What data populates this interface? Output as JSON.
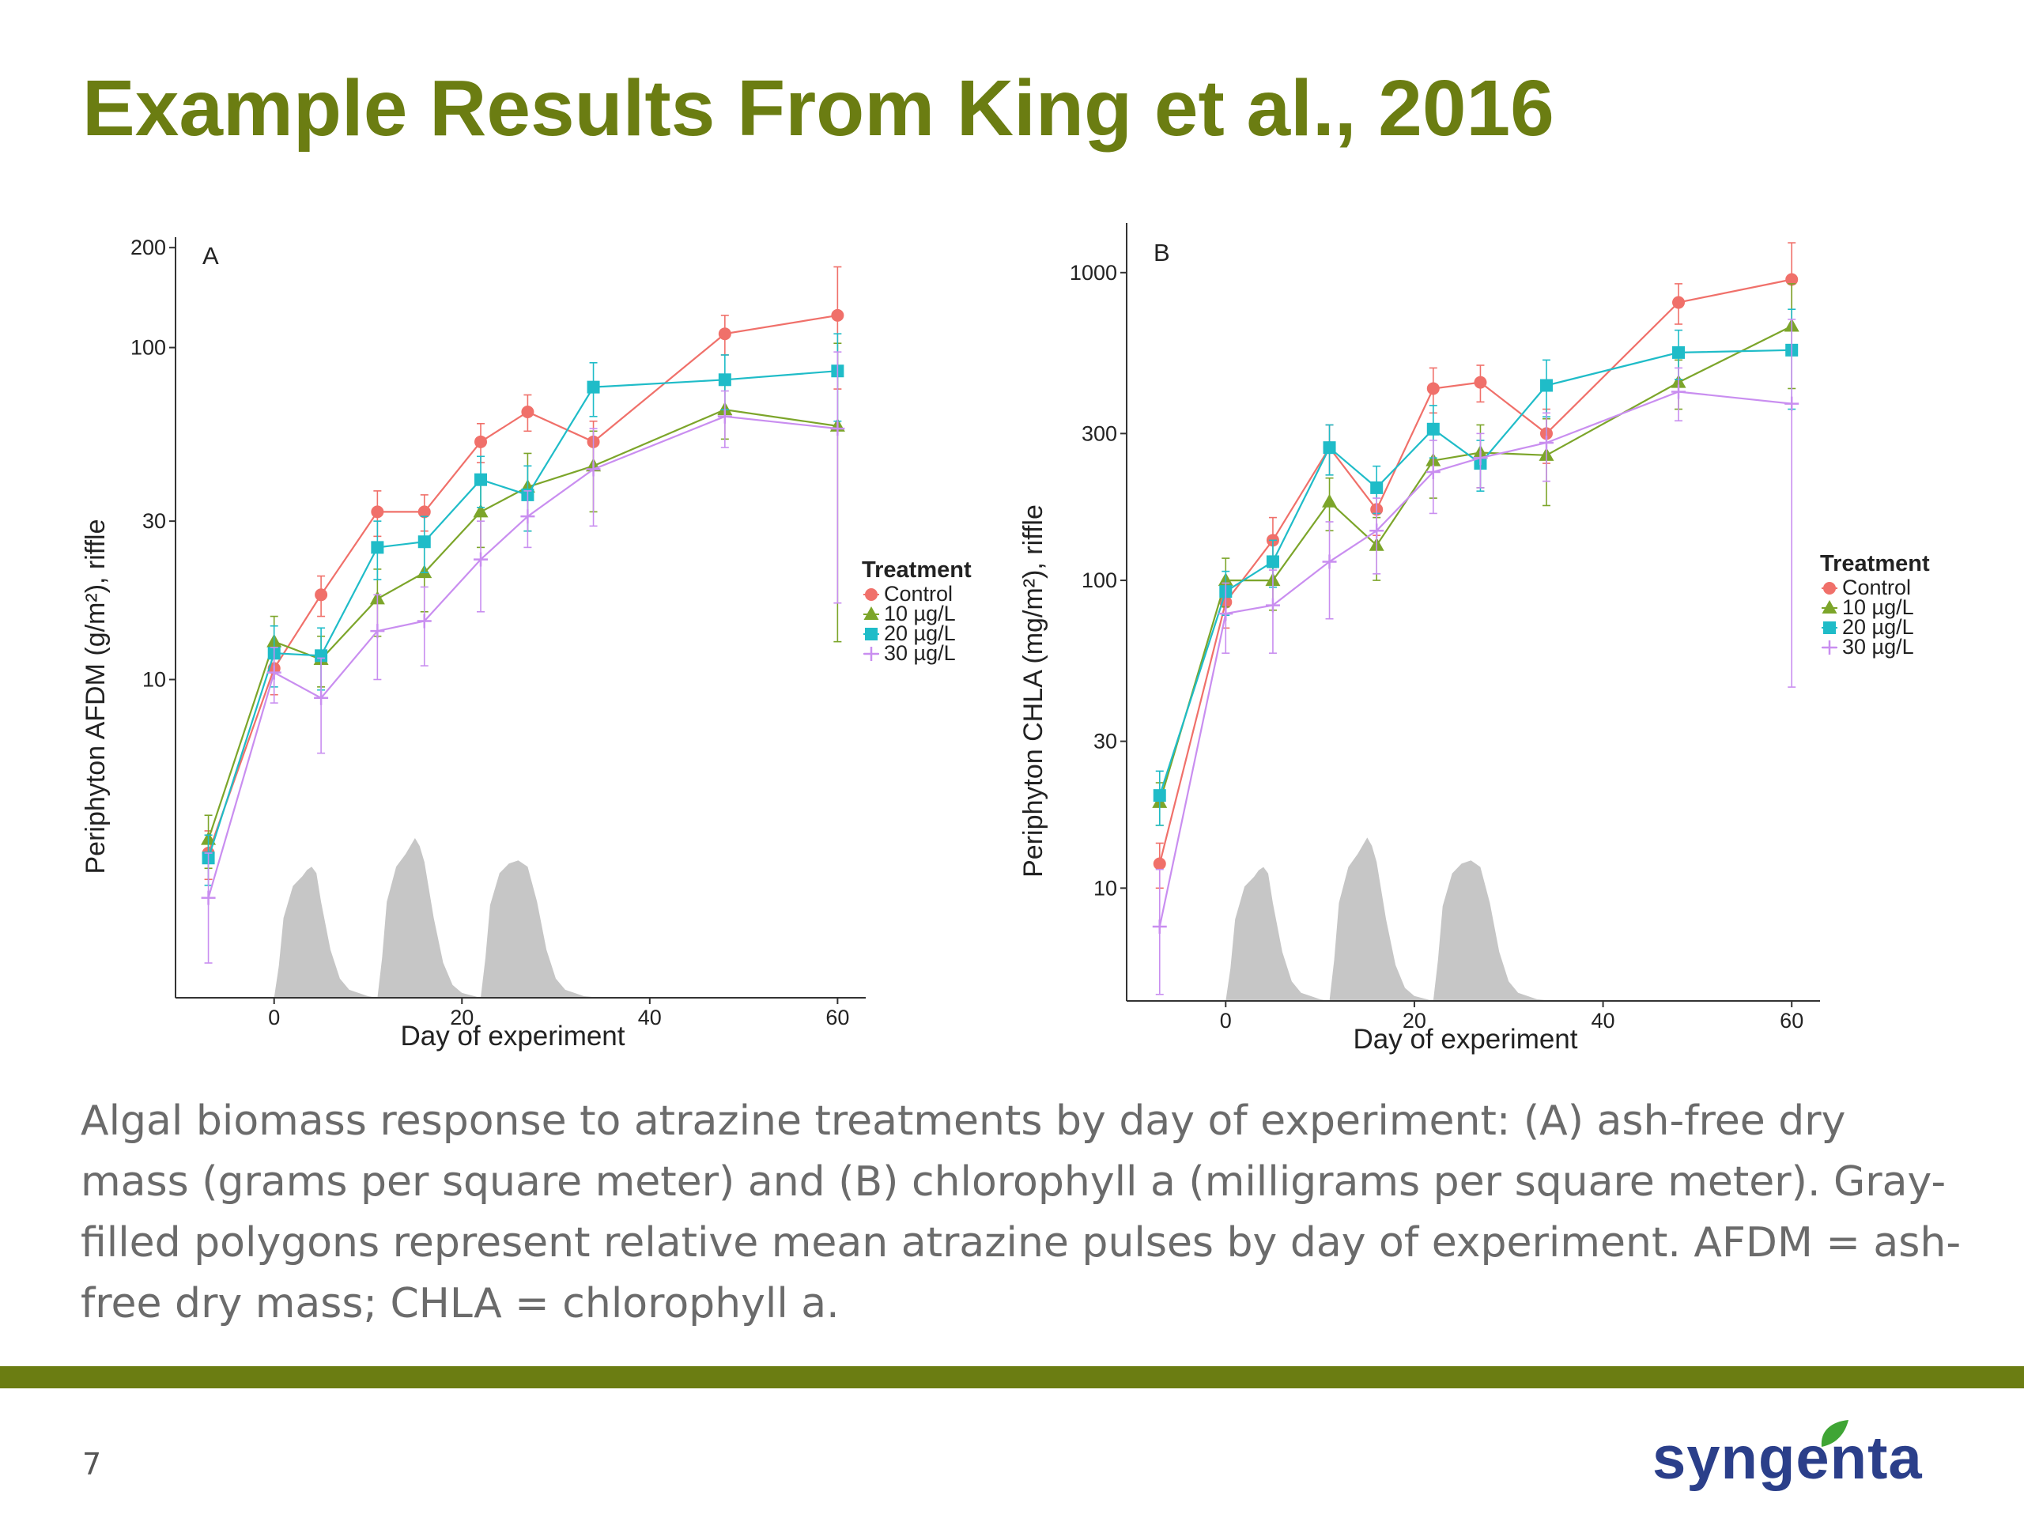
{
  "slide": {
    "title": "Example Results From King et al., 2016",
    "caption": "Algal biomass response to atrazine treatments by day of experiment: (A) ash-free dry mass (grams per square meter) and (B) chlorophyll a (milligrams per square meter). Gray-filled polygons represent relative mean atrazine pulses by day of experiment. AFDM = ash-free dry mass; CHLA = chlorophyll a.",
    "page_number": "7",
    "logo_text": "syngenta"
  },
  "colors": {
    "title": "#6b7d12",
    "footer_bar": "#6b7d12",
    "logo_text": "#2b3f8a",
    "logo_leaf": "#3fa535",
    "pulse_fill": "#c6c6c6",
    "series": [
      "#f0706a",
      "#7ca52a",
      "#1fbcc8",
      "#c98ef0"
    ]
  },
  "chart_data": [
    {
      "type": "line",
      "panel": "A",
      "xlabel": "Day of experiment",
      "ylabel": "Periphyton AFDM (g/m²), riffle",
      "yscale": "log",
      "xlim": [
        -10.5,
        63
      ],
      "ylim": [
        1.1,
        215
      ],
      "xticks": [
        0,
        20,
        40,
        60
      ],
      "yticks": [
        10,
        30,
        100,
        200
      ],
      "grid": false,
      "legend": {
        "title": "Treatment",
        "position": "right",
        "entries": [
          "Control",
          "10 µg/L",
          "20 µg/L",
          "30 µg/L"
        ]
      },
      "x": [
        -7,
        0,
        5,
        11,
        16,
        22,
        27,
        34,
        48,
        60
      ],
      "series": [
        {
          "name": "Control",
          "marker": "circle",
          "values": [
            3.0,
            10.8,
            18.0,
            32.0,
            32.0,
            52.0,
            64.0,
            52.0,
            110.0,
            125.0
          ],
          "error": [
            0.5,
            1.8,
            2.5,
            5.0,
            4.0,
            7.0,
            8.0,
            8.0,
            15.0,
            50.0
          ]
        },
        {
          "name": "10 µg/L",
          "marker": "triangle",
          "values": [
            3.3,
            13.0,
            11.5,
            17.5,
            21.0,
            32.0,
            38.0,
            44.0,
            65.0,
            58.0
          ],
          "error": [
            0.6,
            2.5,
            2.0,
            4.0,
            5.0,
            7.0,
            10.0,
            12.0,
            12.0,
            45.0
          ]
        },
        {
          "name": "20 µg/L",
          "marker": "square",
          "values": [
            2.9,
            12.0,
            11.8,
            25.0,
            26.0,
            40.0,
            36.0,
            76.0,
            80.0,
            85.0
          ],
          "error": [
            0.5,
            2.5,
            2.5,
            5.0,
            5.0,
            7.0,
            8.0,
            14.0,
            15.0,
            25.0
          ]
        },
        {
          "name": "30 µg/L",
          "marker": "plus",
          "values": [
            2.2,
            10.5,
            8.8,
            14.0,
            15.0,
            23.0,
            31.0,
            43.0,
            62.0,
            57.0
          ],
          "error": [
            0.8,
            2.0,
            2.8,
            4.0,
            4.0,
            7.0,
            6.0,
            14.0,
            12.0,
            40.0
          ]
        }
      ],
      "pulses": [
        {
          "x": [
            0,
            0.5,
            1,
            2,
            3,
            3.5,
            4,
            4.5,
            5,
            6,
            7,
            8,
            10,
            11
          ],
          "height": [
            0,
            0.2,
            0.5,
            0.7,
            0.76,
            0.8,
            0.82,
            0.78,
            0.6,
            0.3,
            0.12,
            0.05,
            0.01,
            0
          ]
        },
        {
          "x": [
            11,
            11.5,
            12,
            13,
            14,
            15,
            15.5,
            16,
            17,
            18,
            19,
            20,
            22
          ],
          "height": [
            0,
            0.25,
            0.6,
            0.82,
            0.9,
            1.0,
            0.95,
            0.85,
            0.5,
            0.22,
            0.08,
            0.03,
            0
          ]
        },
        {
          "x": [
            22,
            22.5,
            23,
            24,
            25,
            26,
            27,
            28,
            29,
            30,
            31,
            33,
            35
          ],
          "height": [
            0,
            0.25,
            0.58,
            0.78,
            0.84,
            0.86,
            0.82,
            0.6,
            0.3,
            0.12,
            0.05,
            0.01,
            0
          ]
        }
      ]
    },
    {
      "type": "line",
      "panel": "B",
      "xlabel": "Day of experiment",
      "ylabel": "Periphyton CHLA (mg/m²), riffle",
      "yscale": "log",
      "xlim": [
        -10.5,
        63
      ],
      "ylim": [
        4.3,
        1450
      ],
      "xticks": [
        0,
        20,
        40,
        60
      ],
      "yticks": [
        10,
        30,
        100,
        300,
        1000
      ],
      "grid": false,
      "legend": {
        "title": "Treatment",
        "position": "right",
        "entries": [
          "Control",
          "10 µg/L",
          "20 µg/L",
          "30 µg/L"
        ]
      },
      "x": [
        -7,
        0,
        5,
        11,
        16,
        22,
        27,
        34,
        48,
        60
      ],
      "series": [
        {
          "name": "Control",
          "marker": "circle",
          "values": [
            12.0,
            85.0,
            135.0,
            270.0,
            170.0,
            420.0,
            440.0,
            300.0,
            800.0,
            950.0
          ],
          "error": [
            2.0,
            15.0,
            25.0,
            50.0,
            30.0,
            70.0,
            60.0,
            60.0,
            120.0,
            300.0
          ]
        },
        {
          "name": "10 µg/L",
          "marker": "triangle",
          "values": [
            19.0,
            100.0,
            100.0,
            180.0,
            130.0,
            245.0,
            260.0,
            255.0,
            440.0,
            670.0
          ],
          "error": [
            3.0,
            18.0,
            20.0,
            35.0,
            30.0,
            60.0,
            60.0,
            80.0,
            80.0,
            250.0
          ]
        },
        {
          "name": "20 µg/L",
          "marker": "square",
          "values": [
            20.0,
            92.0,
            115.0,
            270.0,
            200.0,
            310.0,
            240.0,
            430.0,
            550.0,
            560.0
          ],
          "error": [
            4.0,
            15.0,
            20.0,
            50.0,
            35.0,
            60.0,
            45.0,
            90.0,
            100.0,
            200.0
          ]
        },
        {
          "name": "30 µg/L",
          "marker": "plus",
          "values": [
            7.5,
            78.0,
            83.0,
            115.0,
            145.0,
            225.0,
            250.0,
            280.0,
            410.0,
            375.0
          ],
          "error": [
            4.0,
            20.0,
            25.0,
            40.0,
            40.0,
            60.0,
            50.0,
            70.0,
            80.0,
            330.0
          ]
        }
      ],
      "pulses": [
        {
          "x": [
            0,
            0.5,
            1,
            2,
            3,
            3.5,
            4,
            4.5,
            5,
            6,
            7,
            8,
            10,
            11
          ],
          "height": [
            0,
            0.2,
            0.5,
            0.7,
            0.76,
            0.8,
            0.82,
            0.78,
            0.6,
            0.3,
            0.12,
            0.05,
            0.01,
            0
          ]
        },
        {
          "x": [
            11,
            11.5,
            12,
            13,
            14,
            15,
            15.5,
            16,
            17,
            18,
            19,
            20,
            22
          ],
          "height": [
            0,
            0.25,
            0.6,
            0.82,
            0.9,
            1.0,
            0.95,
            0.85,
            0.5,
            0.22,
            0.08,
            0.03,
            0
          ]
        },
        {
          "x": [
            22,
            22.5,
            23,
            24,
            25,
            26,
            27,
            28,
            29,
            30,
            31,
            33,
            35
          ],
          "height": [
            0,
            0.25,
            0.58,
            0.78,
            0.84,
            0.86,
            0.82,
            0.6,
            0.3,
            0.12,
            0.05,
            0.01,
            0
          ]
        }
      ]
    }
  ]
}
